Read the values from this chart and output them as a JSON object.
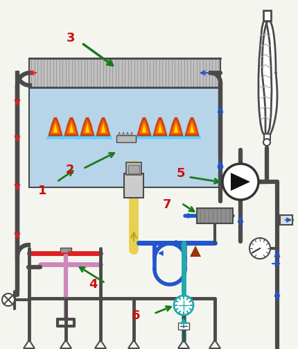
{
  "bg_color": "#f5f5f0",
  "pipe_dark": "#4a4a4a",
  "pipe_gray": "#707070",
  "red_flow": "#dd2222",
  "blue_flow": "#2255cc",
  "green_arrow": "#1a7a1a",
  "yellow_gas": "#e8d050",
  "pink_pipe": "#cc88bb",
  "teal_pipe": "#22aaaa",
  "rad_fill": "#c0c0c0",
  "chamber_fill": "#b8d4e8",
  "label_color": "#cc1111",
  "pump_fill": "#ffffff",
  "pump_edge": "#333333",
  "tan_fill": "#e8e0d0",
  "hx_fill": "#909090"
}
